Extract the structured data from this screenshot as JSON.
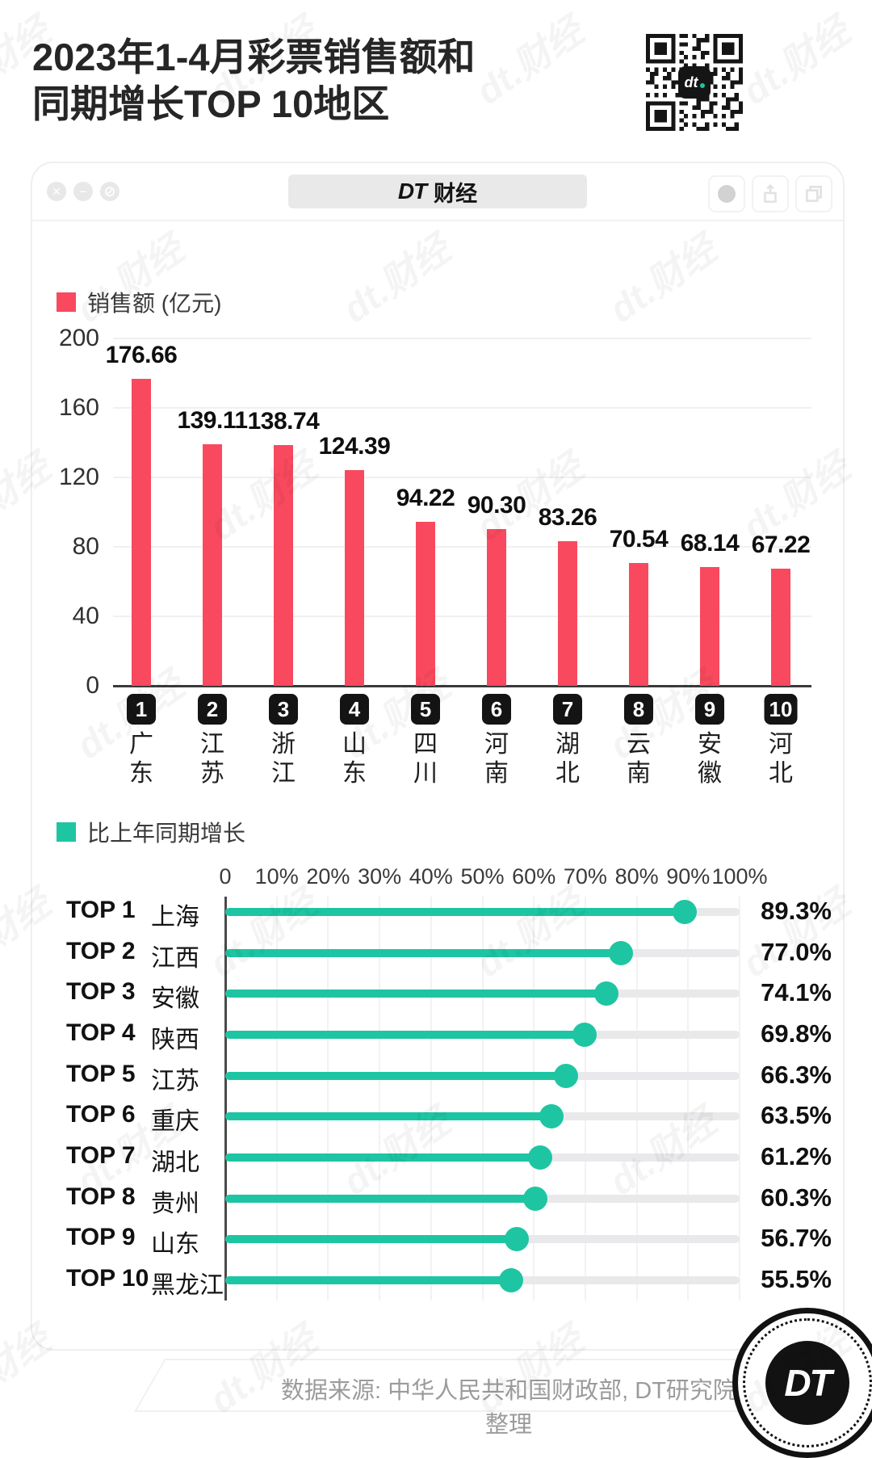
{
  "header": {
    "title_lines": [
      "2023年1-4月彩票销售额和",
      "同期增长TOP 10地区"
    ]
  },
  "window": {
    "tab_brand": "DT",
    "tab_label": "财经",
    "controls_left": [
      "close",
      "minimize",
      "block"
    ],
    "controls_right": [
      "record",
      "share",
      "copy"
    ]
  },
  "qr": {
    "center_label": "dt"
  },
  "watermark": {
    "text": "dt.财经"
  },
  "colors": {
    "sales": "#F8495E",
    "growth": "#1EC5A3",
    "badge_bg": "#141414",
    "track": "#E9E9EB",
    "grid_line": "#F0F0F0",
    "axis": "#3A3A3A"
  },
  "chart_data": [
    {
      "type": "bar",
      "legend": "销售额 (亿元)",
      "categories": [
        "广东",
        "江苏",
        "浙江",
        "山东",
        "四川",
        "河南",
        "湖北",
        "云南",
        "安徽",
        "河北"
      ],
      "ranks": [
        "1",
        "2",
        "3",
        "4",
        "5",
        "6",
        "7",
        "8",
        "9",
        "10"
      ],
      "values": [
        176.66,
        139.11,
        138.74,
        124.39,
        94.22,
        90.3,
        83.26,
        70.54,
        68.14,
        67.22
      ],
      "value_labels": [
        "176.66",
        "139.11",
        "138.74",
        "124.39",
        "94.22",
        "90.30",
        "83.26",
        "70.54",
        "68.14",
        "67.22"
      ],
      "xlabel": "",
      "ylabel": "销售额 (亿元)",
      "ylim": [
        0,
        200
      ],
      "yticks": [
        200,
        160,
        120,
        80,
        40,
        0
      ],
      "grid": true,
      "bar_color": "#F8495E"
    },
    {
      "type": "bar",
      "style": "lollipop",
      "orientation": "horizontal",
      "legend": "比上年同期增长",
      "rank_labels": [
        "TOP 1",
        "TOP 2",
        "TOP 3",
        "TOP 4",
        "TOP 5",
        "TOP 6",
        "TOP 7",
        "TOP 8",
        "TOP 9",
        "TOP 10"
      ],
      "categories": [
        "上海",
        "江西",
        "安徽",
        "陕西",
        "江苏",
        "重庆",
        "湖北",
        "贵州",
        "山东",
        "黑龙江"
      ],
      "values": [
        89.3,
        77.0,
        74.1,
        69.8,
        66.3,
        63.5,
        61.2,
        60.3,
        56.7,
        55.5
      ],
      "value_labels": [
        "89.3%",
        "77.0%",
        "74.1%",
        "69.8%",
        "66.3%",
        "63.5%",
        "61.2%",
        "60.3%",
        "56.7%",
        "55.5%"
      ],
      "xlim": [
        0,
        100
      ],
      "xticks": [
        "0",
        "10%",
        "20%",
        "30%",
        "40%",
        "50%",
        "60%",
        "70%",
        "80%",
        "90%",
        "100%"
      ],
      "grid": true,
      "line_color": "#1EC5A3"
    }
  ],
  "footer": {
    "source": "数据来源: 中华人民共和国财政部, DT研究院整理",
    "logo_text": "DT"
  }
}
